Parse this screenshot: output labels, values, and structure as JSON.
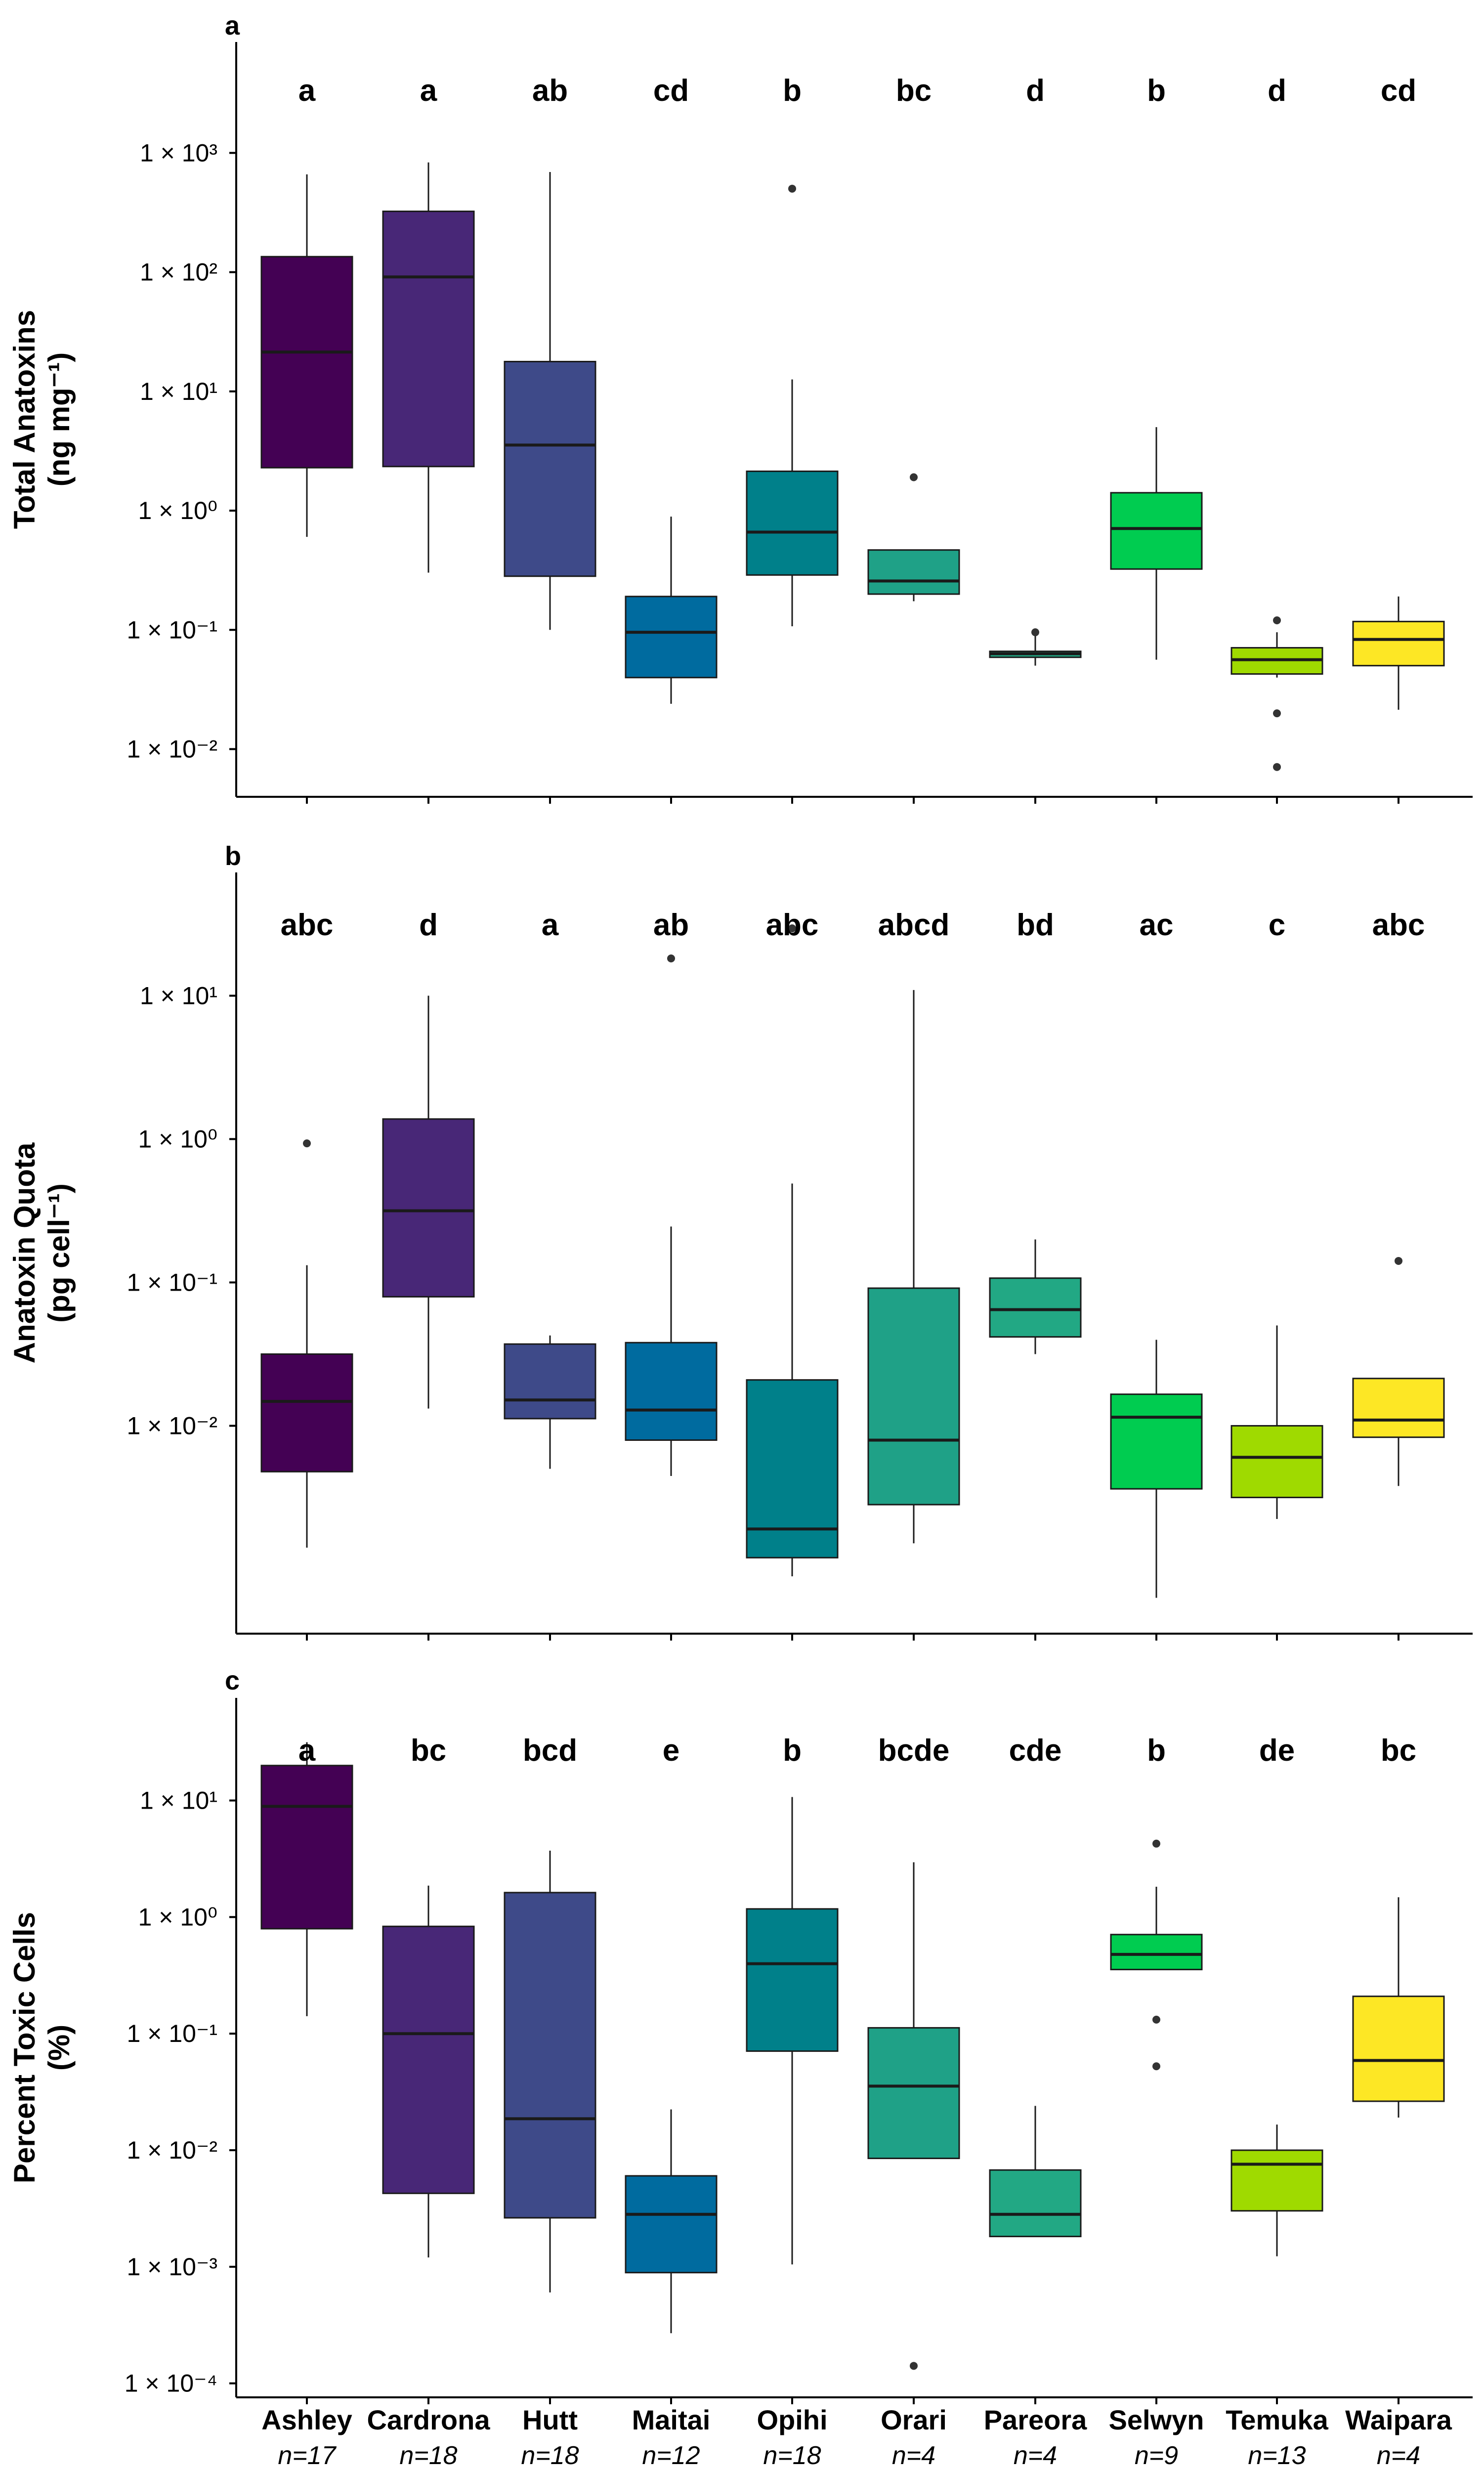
{
  "chart_data": [
    {
      "type": "box",
      "panel": "a",
      "ylabel_line1": "Total Anatoxins",
      "ylabel_line2": "(ng mg⁻¹)",
      "yscale": "log10",
      "ylim_log10": [
        -2.4,
        3.93
      ],
      "tick_labels": [
        "1 × 10⁻²",
        "1 × 10⁻¹",
        "1 × 10⁰",
        "1 × 10¹",
        "1 × 10²",
        "1 × 10³"
      ],
      "tick_values_log10": [
        -2,
        -1,
        0,
        1,
        2,
        3
      ],
      "categories": [
        "Ashley",
        "Cardrona",
        "Hutt",
        "Maitai",
        "Opihi",
        "Orari",
        "Pareora",
        "Selwyn",
        "Temuka",
        "Waipara"
      ],
      "sig_letters": [
        "a",
        "a",
        "ab",
        "cd",
        "b",
        "bc",
        "d",
        "b",
        "d",
        "cd"
      ],
      "boxes_log10": [
        {
          "wlo": -0.22,
          "q1": 0.36,
          "med": 1.33,
          "q3": 2.13,
          "whi": 2.82,
          "out": []
        },
        {
          "wlo": -0.52,
          "q1": 0.37,
          "med": 1.96,
          "q3": 2.51,
          "whi": 2.92,
          "out": []
        },
        {
          "wlo": -1.0,
          "q1": -0.55,
          "med": 0.55,
          "q3": 1.25,
          "whi": 2.84,
          "out": []
        },
        {
          "wlo": -1.62,
          "q1": -1.4,
          "med": -1.02,
          "q3": -0.72,
          "whi": -0.05,
          "out": []
        },
        {
          "wlo": -0.97,
          "q1": -0.54,
          "med": -0.18,
          "q3": 0.33,
          "whi": 1.1,
          "out": [
            2.7
          ]
        },
        {
          "wlo": -0.76,
          "q1": -0.7,
          "med": -0.59,
          "q3": -0.33,
          "whi": -0.33,
          "out": [
            0.28
          ]
        },
        {
          "wlo": -1.3,
          "q1": -1.23,
          "med": -1.2,
          "q3": -1.18,
          "whi": -1.02,
          "out": [
            -1.02
          ]
        },
        {
          "wlo": -1.25,
          "q1": -0.49,
          "med": -0.15,
          "q3": 0.15,
          "whi": 0.7,
          "out": []
        },
        {
          "wlo": -1.4,
          "q1": -1.37,
          "med": -1.25,
          "q3": -1.15,
          "whi": -1.02,
          "out": [
            -0.92,
            -1.7,
            -2.15
          ]
        },
        {
          "wlo": -1.67,
          "q1": -1.3,
          "med": -1.08,
          "q3": -0.93,
          "whi": -0.72,
          "out": []
        }
      ]
    },
    {
      "type": "box",
      "panel": "b",
      "ylabel_line1": "Anatoxin Quota",
      "ylabel_line2": "(pg cell⁻¹)",
      "yscale": "log10",
      "ylim_log10": [
        -3.45,
        1.86
      ],
      "tick_labels": [
        "1 × 10⁻²",
        "1 × 10⁻¹",
        "1 × 10⁰",
        "1 × 10¹"
      ],
      "tick_values_log10": [
        -2,
        -1,
        0,
        1
      ],
      "categories": [
        "Ashley",
        "Cardrona",
        "Hutt",
        "Maitai",
        "Opihi",
        "Orari",
        "Pareora",
        "Selwyn",
        "Temuka",
        "Waipara"
      ],
      "sig_letters": [
        "abc",
        "d",
        "a",
        "ab",
        "abc",
        "abcd",
        "bd",
        "ac",
        "c",
        "abc"
      ],
      "boxes_log10": [
        {
          "wlo": -2.85,
          "q1": -2.32,
          "med": -1.83,
          "q3": -1.5,
          "whi": -0.88,
          "out": [
            -0.03
          ]
        },
        {
          "wlo": -1.88,
          "q1": -1.1,
          "med": -0.5,
          "q3": 0.14,
          "whi": 1.0,
          "out": []
        },
        {
          "wlo": -2.3,
          "q1": -1.95,
          "med": -1.82,
          "q3": -1.43,
          "whi": -1.37,
          "out": []
        },
        {
          "wlo": -2.35,
          "q1": -2.1,
          "med": -1.89,
          "q3": -1.42,
          "whi": -0.61,
          "out": [
            1.26
          ]
        },
        {
          "wlo": -3.05,
          "q1": -2.92,
          "med": -2.72,
          "q3": -1.68,
          "whi": -0.31,
          "out": [
            1.47
          ]
        },
        {
          "wlo": -2.82,
          "q1": -2.55,
          "med": -2.1,
          "q3": -1.04,
          "whi": 1.04,
          "out": []
        },
        {
          "wlo": -1.5,
          "q1": -1.38,
          "med": -1.19,
          "q3": -0.97,
          "whi": -0.7,
          "out": []
        },
        {
          "wlo": -3.2,
          "q1": -2.44,
          "med": -1.94,
          "q3": -1.78,
          "whi": -1.4,
          "out": []
        },
        {
          "wlo": -2.65,
          "q1": -2.5,
          "med": -2.22,
          "q3": -2.0,
          "whi": -1.3,
          "out": []
        },
        {
          "wlo": -2.42,
          "q1": -2.08,
          "med": -1.96,
          "q3": -1.67,
          "whi": -1.67,
          "out": [
            -0.85
          ]
        }
      ]
    },
    {
      "type": "box",
      "panel": "c",
      "ylabel_line1": "Percent Toxic Cells",
      "ylabel_line2": "(%)",
      "yscale": "log10",
      "ylim_log10": [
        -4.12,
        1.88
      ],
      "tick_labels": [
        "1 × 10⁻⁴",
        "1 × 10⁻³",
        "1 × 10⁻²",
        "1 × 10⁻¹",
        "1 × 10⁰",
        "1 × 10¹"
      ],
      "tick_values_log10": [
        -4,
        -3,
        -2,
        -1,
        0,
        1
      ],
      "categories": [
        "Ashley",
        "Cardrona",
        "Hutt",
        "Maitai",
        "Opihi",
        "Orari",
        "Pareora",
        "Selwyn",
        "Temuka",
        "Waipara"
      ],
      "sig_letters": [
        "a",
        "bc",
        "bcd",
        "e",
        "b",
        "bcde",
        "cde",
        "b",
        "de",
        "bc"
      ],
      "boxes_log10": [
        {
          "wlo": -0.85,
          "q1": -0.1,
          "med": 0.95,
          "q3": 1.3,
          "whi": 1.5,
          "out": []
        },
        {
          "wlo": -2.92,
          "q1": -2.37,
          "med": -1.0,
          "q3": -0.08,
          "whi": 0.27,
          "out": []
        },
        {
          "wlo": -3.22,
          "q1": -2.58,
          "med": -1.73,
          "q3": 0.21,
          "whi": 0.57,
          "out": []
        },
        {
          "wlo": -3.57,
          "q1": -3.05,
          "med": -2.55,
          "q3": -2.22,
          "whi": -1.65,
          "out": []
        },
        {
          "wlo": -2.98,
          "q1": -1.15,
          "med": -0.4,
          "q3": 0.07,
          "whi": 1.03,
          "out": []
        },
        {
          "wlo": -1.97,
          "q1": -2.07,
          "med": -1.45,
          "q3": -0.95,
          "whi": 0.47,
          "out": [
            -3.85
          ]
        },
        {
          "wlo": -2.74,
          "q1": -2.74,
          "med": -2.55,
          "q3": -2.17,
          "whi": -1.62,
          "out": []
        },
        {
          "wlo": -0.43,
          "q1": -0.45,
          "med": -0.32,
          "q3": -0.15,
          "whi": 0.26,
          "out": [
            0.63,
            -0.88,
            -1.28
          ]
        },
        {
          "wlo": -2.91,
          "q1": -2.52,
          "med": -2.12,
          "q3": -2.0,
          "whi": -1.78,
          "out": []
        },
        {
          "wlo": -1.72,
          "q1": -1.58,
          "med": -1.23,
          "q3": -0.68,
          "whi": 0.17,
          "out": []
        }
      ]
    }
  ],
  "x_axis": {
    "labels": [
      "Ashley",
      "Cardrona",
      "Hutt",
      "Maitai",
      "Opihi",
      "Orari",
      "Pareora",
      "Selwyn",
      "Temuka",
      "Waipara"
    ],
    "sample_sizes": [
      "n=17",
      "n=18",
      "n=18",
      "n=12",
      "n=18",
      "n=4",
      "n=4",
      "n=9",
      "n=13",
      "n=4"
    ]
  },
  "colors": [
    "#440154",
    "#482777",
    "#3E4A89",
    "#006B9F",
    "#00808A",
    "#1FA187",
    "#22A884",
    "#00CC50",
    "#9FDA00",
    "#FDE725"
  ]
}
